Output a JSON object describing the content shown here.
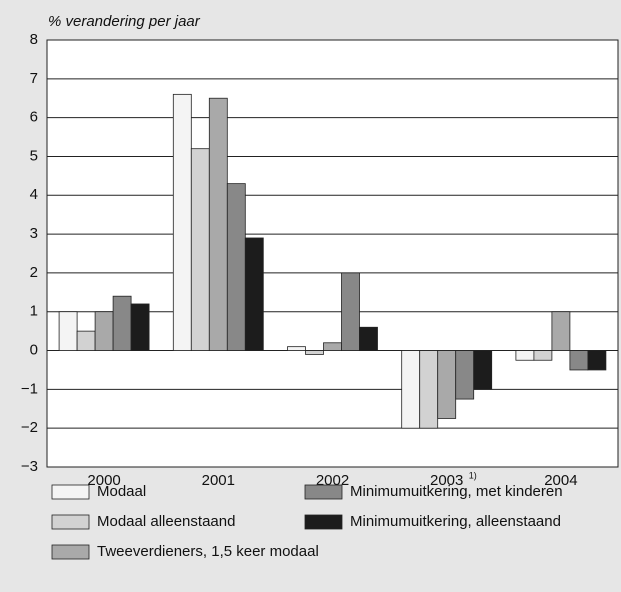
{
  "chart_data": {
    "type": "bar",
    "y_axis_label": "% verandering per jaar",
    "categories": [
      "2000",
      "2001",
      "2002",
      "2003",
      "2004"
    ],
    "category_footnotes": [
      null,
      null,
      null,
      "1)",
      null
    ],
    "series": [
      {
        "name": "Modaal",
        "color": "#f4f4f4",
        "values": [
          1.0,
          6.6,
          0.1,
          -2.0,
          -0.25
        ]
      },
      {
        "name": "Modaal alleenstaand",
        "color": "#d2d2d2",
        "values": [
          0.5,
          5.2,
          -0.1,
          -2.0,
          -0.25
        ]
      },
      {
        "name": "Tweeverdieners, 1,5 keer modaal",
        "color": "#a9a9a9",
        "values": [
          1.0,
          6.5,
          0.2,
          -1.75,
          1.0
        ]
      },
      {
        "name": "Minimumuitkering, met kinderen",
        "color": "#888888",
        "values": [
          1.4,
          4.3,
          2.0,
          -1.25,
          -0.5
        ]
      },
      {
        "name": "Minimumuitkering, alleenstaand",
        "color": "#1c1c1c",
        "values": [
          1.2,
          2.9,
          0.6,
          -1.0,
          -0.5
        ]
      }
    ],
    "ylim": [
      -3,
      8
    ],
    "yticks": [
      {
        "value": -3,
        "label": "−3"
      },
      {
        "value": -2,
        "label": "−2"
      },
      {
        "value": -1,
        "label": "−1"
      },
      {
        "value": 0,
        "label": "0"
      },
      1,
      2,
      3,
      4,
      5,
      6,
      7,
      8
    ],
    "grid": true,
    "legend": "bottom"
  }
}
